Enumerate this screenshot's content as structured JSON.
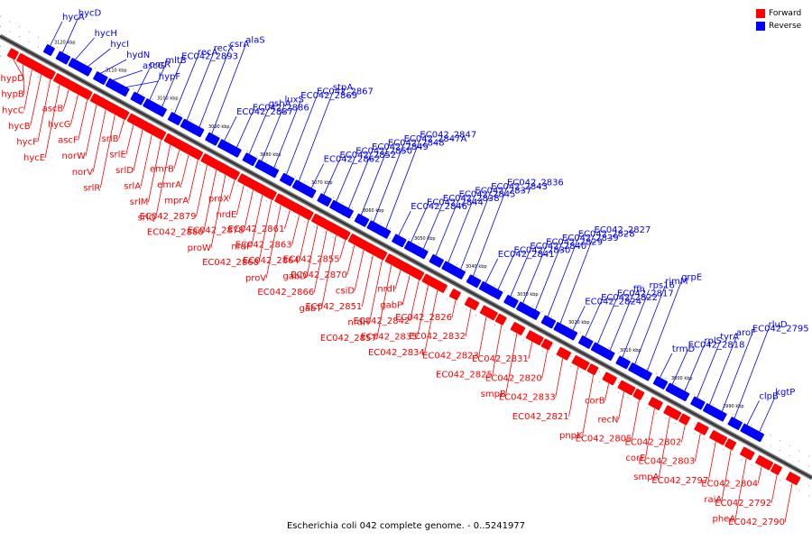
{
  "caption": "Escherichia coli 042 complete genome. - 0..5241977",
  "legend": {
    "forward_label": "Forward",
    "reverse_label": "Reverse",
    "forward_color": "#ff0000",
    "reverse_color": "#0000ff"
  },
  "kbp_ticks": [
    "3120 kbp",
    "3110 kbp",
    "3100 kbp",
    "3090 kbp",
    "3080 kbp",
    "3070 kbp",
    "3060 kbp",
    "3050 kbp",
    "3040 kbp",
    "3030 kbp",
    "3020 kbp",
    "3010 kbp",
    "3000 kbp",
    "2990 kbp"
  ],
  "reverse_genes": [
    "hycA",
    "hycD",
    "hycH",
    "hycI",
    "hydN",
    "ascG",
    "hypF",
    "norR",
    "mltB",
    "EC042_2893",
    "recA",
    "recX",
    "csrA",
    "alaS",
    "EC042_2887",
    "EC042_2886",
    "gshA",
    "luxS",
    "EC042_2869",
    "EC042_2867",
    "stpA",
    "EC042_2862",
    "EC042_2852",
    "EC042_2850",
    "EC042_2849",
    "EC042_2848",
    "EC042_2847A",
    "EC042_2847",
    "EC042_2846",
    "EC042_2844",
    "EC042_2838",
    "EC042_2845",
    "EC042_2837",
    "EC042_2843",
    "EC042_2836",
    "EC042_2841",
    "EC042_2830",
    "EC042_2840",
    "EC042_2829",
    "EC042_2839",
    "EC042_2828",
    "EC042_2827",
    "EC042_2824",
    "EC042_2822",
    "EC042_2817",
    "ffh",
    "rps16",
    "rimM",
    "grpE",
    "trmD",
    "EC042_2818",
    "rplS",
    "tyrA",
    "aroF",
    "EC042_2795",
    "rluD",
    "clpB",
    "kgtP"
  ],
  "forward_genes_left": [
    "hypD",
    "hypB",
    "hycC",
    "hycB",
    "hycF",
    "hycE",
    "ascB",
    "hycG",
    "ascF",
    "norW",
    "norV",
    "srlR",
    "srlB",
    "srlE",
    "srlD",
    "srlA",
    "srlM",
    "srlQ",
    "emrB",
    "emrA",
    "mprA",
    "EC042_2879",
    "EC042_2880",
    "proW",
    "proX",
    "nrdE",
    "EC042_2878",
    "nrdF",
    "EC042_2868",
    "proV",
    "EC042_2861",
    "EC042_2863",
    "EC042_2864",
    "gabD",
    "EC042_2866",
    "gabT",
    "EC042_2855",
    "EC042_2870",
    "csiD",
    "EC042_2851",
    "nrdH",
    "EC042_2857",
    "nrdI",
    "gabP",
    "EC042_2842",
    "EC042_2835",
    "EC042_2834"
  ],
  "forward_genes_right": [
    "EC042_2826",
    "EC042_2832",
    "EC042_2823",
    "EC042_2825",
    "smpB",
    "EC042_2831",
    "EC042_2820",
    "EC042_2833",
    "EC042_2821",
    "pnpK",
    "corB",
    "recN",
    "EC042_2805",
    "corE",
    "smpA",
    "EC042_2802",
    "EC042_2803",
    "EC042_2797",
    "raiA",
    "pheA",
    "EC042_2804",
    "EC042_2792",
    "EC042_2790"
  ]
}
